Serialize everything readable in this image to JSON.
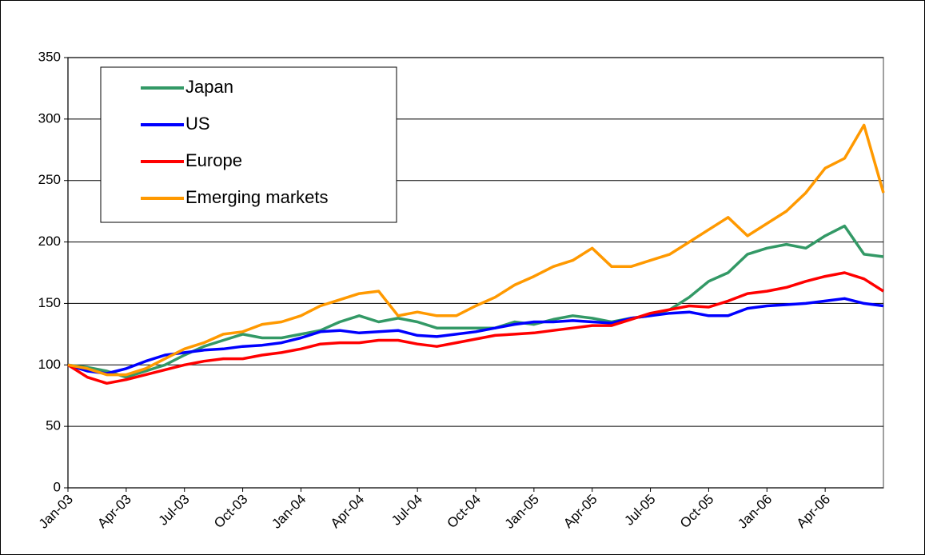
{
  "chart_data": {
    "type": "line",
    "x": [
      "2003-01",
      "2003-02",
      "2003-03",
      "2003-04",
      "2003-05",
      "2003-06",
      "2003-07",
      "2003-08",
      "2003-09",
      "2003-10",
      "2003-11",
      "2003-12",
      "2004-01",
      "2004-02",
      "2004-03",
      "2004-04",
      "2004-05",
      "2004-06",
      "2004-07",
      "2004-08",
      "2004-09",
      "2004-10",
      "2004-11",
      "2004-12",
      "2005-01",
      "2005-02",
      "2005-03",
      "2005-04",
      "2005-05",
      "2005-06",
      "2005-07",
      "2005-08",
      "2005-09",
      "2005-10",
      "2005-11",
      "2005-12",
      "2006-01",
      "2006-02",
      "2006-03",
      "2006-04",
      "2006-05",
      "2006-06",
      "2006-07"
    ],
    "series": [
      {
        "name": "Japan",
        "color": "#339966",
        "values": [
          100,
          98,
          95,
          90,
          95,
          100,
          108,
          115,
          120,
          125,
          122,
          122,
          125,
          128,
          135,
          140,
          135,
          138,
          135,
          130,
          130,
          130,
          130,
          135,
          133,
          137,
          140,
          138,
          135,
          138,
          140,
          145,
          155,
          168,
          175,
          190,
          195,
          198,
          195,
          205,
          213,
          190,
          188
        ]
      },
      {
        "name": "US",
        "color": "#0000ff",
        "values": [
          100,
          95,
          93,
          97,
          103,
          108,
          110,
          112,
          113,
          115,
          116,
          118,
          122,
          127,
          128,
          126,
          127,
          128,
          124,
          123,
          125,
          127,
          130,
          133,
          135,
          135,
          136,
          135,
          134,
          138,
          140,
          142,
          143,
          140,
          140,
          146,
          148,
          149,
          150,
          152,
          154,
          150,
          148
        ]
      },
      {
        "name": "Europe",
        "color": "#ff0000",
        "values": [
          100,
          90,
          85,
          88,
          92,
          96,
          100,
          103,
          105,
          105,
          108,
          110,
          113,
          117,
          118,
          118,
          120,
          120,
          117,
          115,
          118,
          121,
          124,
          125,
          126,
          128,
          130,
          132,
          132,
          137,
          142,
          145,
          148,
          147,
          152,
          158,
          160,
          163,
          168,
          172,
          175,
          170,
          160
        ]
      },
      {
        "name": "Emerging markets",
        "color": "#ff9900",
        "values": [
          100,
          97,
          92,
          92,
          97,
          105,
          113,
          118,
          125,
          127,
          133,
          135,
          140,
          148,
          153,
          158,
          160,
          140,
          143,
          140,
          140,
          148,
          155,
          165,
          172,
          180,
          185,
          195,
          180,
          180,
          185,
          190,
          200,
          210,
          220,
          205,
          215,
          225,
          240,
          260,
          268,
          295,
          240
        ]
      }
    ],
    "xlim": [
      "2003-01",
      "2006-07"
    ],
    "xticks": [
      {
        "value": "2003-01",
        "label": "Jan-03"
      },
      {
        "value": "2003-04",
        "label": "Apr-03"
      },
      {
        "value": "2003-07",
        "label": "Jul-03"
      },
      {
        "value": "2003-10",
        "label": "Oct-03"
      },
      {
        "value": "2004-01",
        "label": "Jan-04"
      },
      {
        "value": "2004-04",
        "label": "Apr-04"
      },
      {
        "value": "2004-07",
        "label": "Jul-04"
      },
      {
        "value": "2004-10",
        "label": "Oct-04"
      },
      {
        "value": "2005-01",
        "label": "Jan-05"
      },
      {
        "value": "2005-04",
        "label": "Apr-05"
      },
      {
        "value": "2005-07",
        "label": "Jul-05"
      },
      {
        "value": "2005-10",
        "label": "Oct-05"
      },
      {
        "value": "2006-01",
        "label": "Jan-06"
      },
      {
        "value": "2006-04",
        "label": "Apr-06"
      }
    ],
    "ylim": [
      0,
      350
    ],
    "yticks": [
      0,
      50,
      100,
      150,
      200,
      250,
      300,
      350
    ],
    "grid": true,
    "legend": "top-left"
  }
}
